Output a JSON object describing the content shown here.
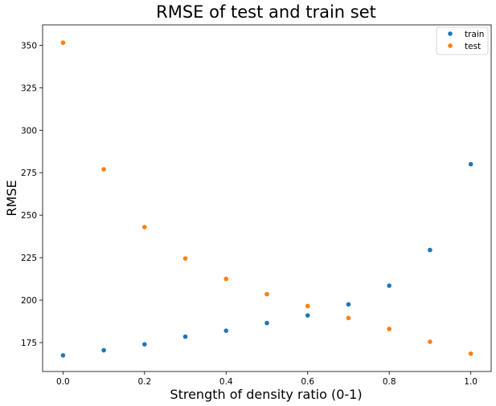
{
  "chart_data": {
    "type": "scatter",
    "title": "RMSE of test and train set",
    "xlabel": "Strength of density ratio (0-1)",
    "ylabel": "RMSE",
    "xlim": [
      -0.05,
      1.05
    ],
    "ylim": [
      158,
      362
    ],
    "xticks": [
      0.0,
      0.2,
      0.4,
      0.6,
      0.8,
      1.0
    ],
    "xtick_labels": [
      "0.0",
      "0.2",
      "0.4",
      "0.6",
      "0.8",
      "1.0"
    ],
    "yticks": [
      175,
      200,
      225,
      250,
      275,
      300,
      325,
      350
    ],
    "ytick_labels": [
      "175",
      "200",
      "225",
      "250",
      "275",
      "300",
      "325",
      "350"
    ],
    "grid": false,
    "legend_position": "top-right",
    "series": [
      {
        "name": "train",
        "color": "#1f77b4",
        "x": [
          0.0,
          0.1,
          0.2,
          0.3,
          0.4,
          0.5,
          0.6,
          0.7,
          0.8,
          0.9,
          1.0
        ],
        "y": [
          167.5,
          170.5,
          174.0,
          178.5,
          182.0,
          186.5,
          191.0,
          197.5,
          208.5,
          229.5,
          280.0
        ]
      },
      {
        "name": "test",
        "color": "#ff7f0e",
        "x": [
          0.0,
          0.1,
          0.2,
          0.3,
          0.4,
          0.5,
          0.6,
          0.7,
          0.8,
          0.9,
          1.0
        ],
        "y": [
          351.5,
          277.0,
          243.0,
          224.5,
          212.5,
          203.5,
          196.5,
          189.5,
          183.0,
          175.5,
          168.5
        ]
      }
    ]
  }
}
